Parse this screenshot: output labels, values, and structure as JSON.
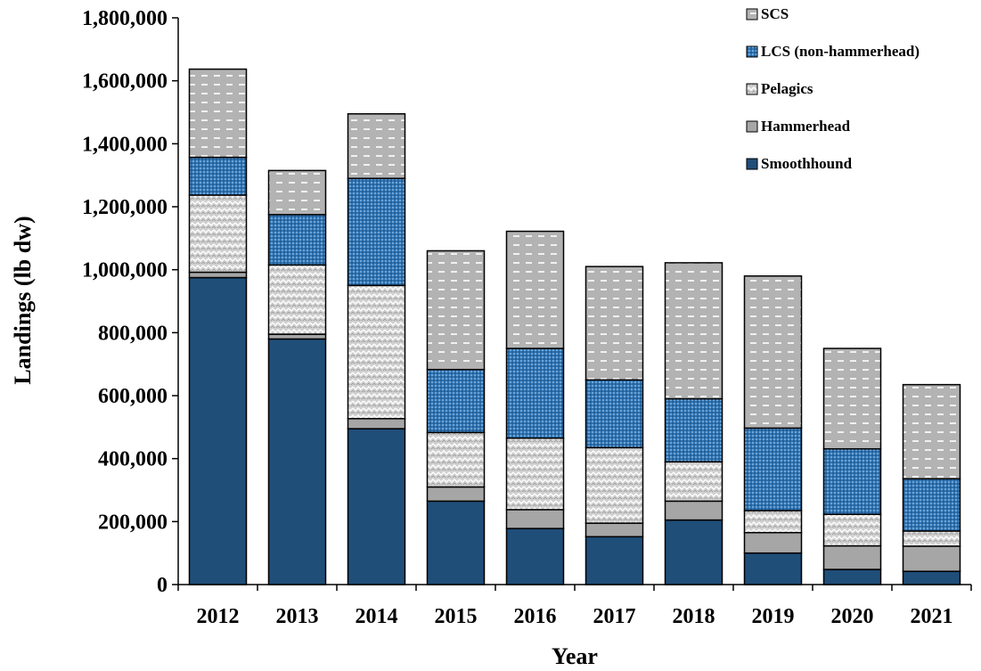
{
  "chart_data": {
    "type": "bar",
    "stacked": true,
    "xlabel": "Year",
    "ylabel": "Landings (lb dw)",
    "ylim": [
      0,
      1800000
    ],
    "yticks": [
      0,
      200000,
      400000,
      600000,
      800000,
      1000000,
      1200000,
      1400000,
      1600000,
      1800000
    ],
    "ytick_labels": [
      "0",
      "200,000",
      "400,000",
      "600,000",
      "800,000",
      "1,000,000",
      "1,200,000",
      "1,400,000",
      "1,600,000",
      "1,800,000"
    ],
    "categories": [
      "2012",
      "2013",
      "2014",
      "2015",
      "2016",
      "2017",
      "2018",
      "2019",
      "2020",
      "2021"
    ],
    "grid": false,
    "legend_position": "top-right",
    "series": [
      {
        "name": "Smoothhound",
        "color": "#1f4e79",
        "pattern": "solid",
        "values": [
          975000,
          780000,
          495000,
          265000,
          178000,
          152000,
          205000,
          100000,
          48000,
          42000
        ]
      },
      {
        "name": "Hammerhead",
        "color": "#a6a6a6",
        "pattern": "solid",
        "values": [
          17000,
          15000,
          32000,
          45000,
          60000,
          43000,
          60000,
          65000,
          75000,
          80000
        ]
      },
      {
        "name": "Pelagics",
        "color": "#d9d9d9",
        "pattern": "zigzag",
        "values": [
          245000,
          220000,
          423000,
          173000,
          227000,
          240000,
          125000,
          70000,
          100000,
          48000
        ]
      },
      {
        "name": "LCS (non-hammerhead)",
        "color": "#2e75b6",
        "pattern": "dots",
        "values": [
          120000,
          160000,
          340000,
          200000,
          285000,
          215000,
          200000,
          262000,
          208000,
          166000
        ]
      },
      {
        "name": "SCS",
        "color": "#bfbfbf",
        "pattern": "dashes",
        "values": [
          280000,
          140000,
          205000,
          377000,
          372000,
          360000,
          432000,
          483000,
          319000,
          299000
        ]
      }
    ],
    "legend_order": [
      "SCS",
      "LCS (non-hammerhead)",
      "Pelagics",
      "Hammerhead",
      "Smoothhound"
    ]
  }
}
